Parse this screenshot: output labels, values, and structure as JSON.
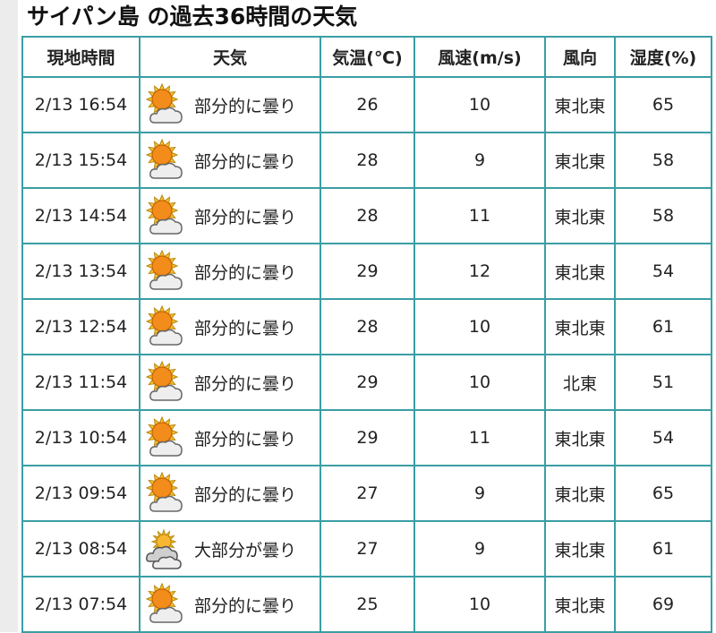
{
  "title": "サイパン島 の過去36時間の天気",
  "headers": [
    "現地時間",
    "天気",
    "気温(℃)",
    "風速(m/s)",
    "風向",
    "湿度(%)"
  ],
  "rows": [
    {
      "time": "2/13 16:54",
      "icon": "partly-cloudy-icon",
      "weather": "部分的に曇り",
      "temp": "26",
      "wind": "10",
      "dir": "東北東",
      "humidity": "65"
    },
    {
      "time": "2/13 15:54",
      "icon": "partly-cloudy-icon",
      "weather": "部分的に曇り",
      "temp": "28",
      "wind": "9",
      "dir": "東北東",
      "humidity": "58"
    },
    {
      "time": "2/13 14:54",
      "icon": "partly-cloudy-icon",
      "weather": "部分的に曇り",
      "temp": "28",
      "wind": "11",
      "dir": "東北東",
      "humidity": "58"
    },
    {
      "time": "2/13 13:54",
      "icon": "partly-cloudy-icon",
      "weather": "部分的に曇り",
      "temp": "29",
      "wind": "12",
      "dir": "東北東",
      "humidity": "54"
    },
    {
      "time": "2/13 12:54",
      "icon": "partly-cloudy-icon",
      "weather": "部分的に曇り",
      "temp": "28",
      "wind": "10",
      "dir": "東北東",
      "humidity": "61"
    },
    {
      "time": "2/13 11:54",
      "icon": "partly-cloudy-icon",
      "weather": "部分的に曇り",
      "temp": "29",
      "wind": "10",
      "dir": "北東",
      "humidity": "51"
    },
    {
      "time": "2/13 10:54",
      "icon": "partly-cloudy-icon",
      "weather": "部分的に曇り",
      "temp": "29",
      "wind": "11",
      "dir": "東北東",
      "humidity": "54"
    },
    {
      "time": "2/13 09:54",
      "icon": "partly-cloudy-icon",
      "weather": "部分的に曇り",
      "temp": "27",
      "wind": "9",
      "dir": "東北東",
      "humidity": "65"
    },
    {
      "time": "2/13 08:54",
      "icon": "mostly-cloudy-icon",
      "weather": "大部分が曇り",
      "temp": "27",
      "wind": "9",
      "dir": "東北東",
      "humidity": "61"
    },
    {
      "time": "2/13 07:54",
      "icon": "partly-cloudy-icon",
      "weather": "部分的に曇り",
      "temp": "25",
      "wind": "10",
      "dir": "東北東",
      "humidity": "69"
    }
  ],
  "colors": {
    "border": "#3a9ea4",
    "sun": "#f08a10"
  }
}
